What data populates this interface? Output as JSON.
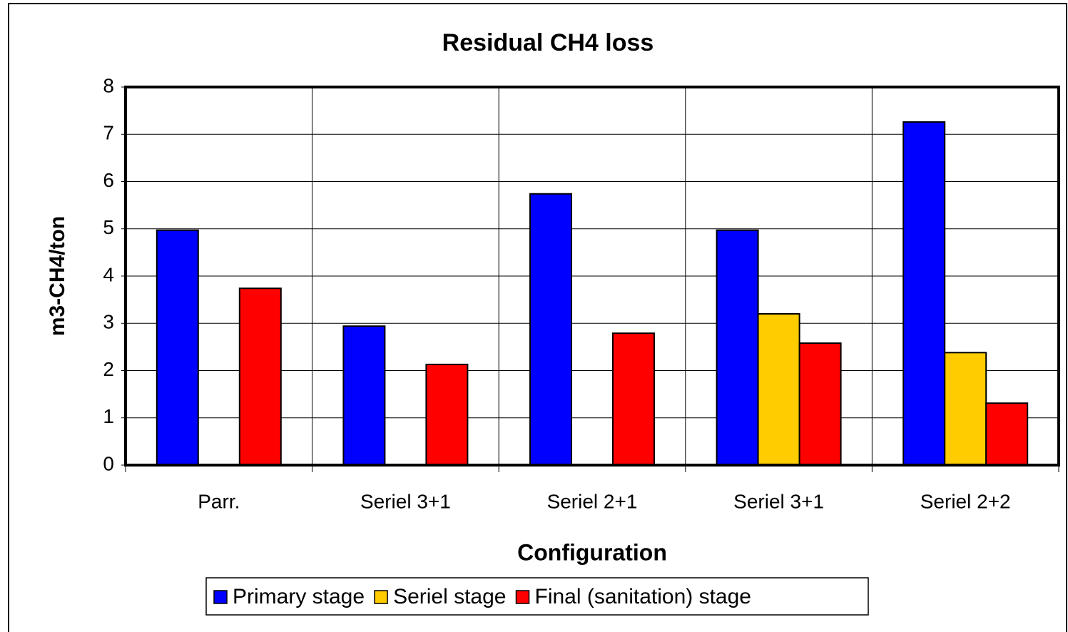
{
  "chart_data": {
    "type": "bar",
    "title": "Residual CH4 loss",
    "x_label": "Configuration",
    "y_label": "m3-CH4/ton",
    "categories": [
      "Parr.",
      "Seriel 3+1",
      "Seriel 2+1",
      "Seriel 3+1",
      "Seriel 2+2"
    ],
    "series": [
      {
        "name": "Primary stage",
        "color": "#0000ff",
        "values": [
          4.97,
          2.94,
          5.74,
          4.97,
          7.26
        ]
      },
      {
        "name": "Seriel stage",
        "color": "#ffcc00",
        "values": [
          null,
          null,
          null,
          3.2,
          2.38
        ]
      },
      {
        "name": "Final (sanitation) stage",
        "color": "#ff0000",
        "values": [
          3.74,
          2.13,
          2.79,
          2.58,
          1.31
        ]
      }
    ],
    "ylim": [
      0,
      8
    ],
    "yticks": [
      0,
      1,
      2,
      3,
      4,
      5,
      6,
      7,
      8
    ],
    "grid": true,
    "legend": "bottom"
  }
}
